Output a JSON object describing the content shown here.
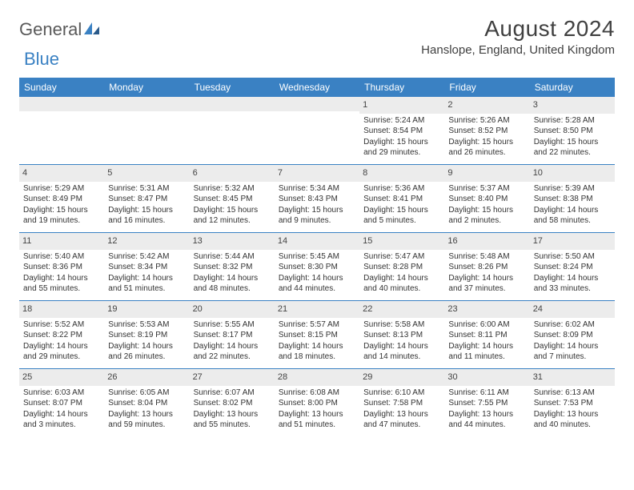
{
  "logo": {
    "text_general": "General",
    "text_blue": "Blue"
  },
  "title": "August 2024",
  "location": "Hanslope, England, United Kingdom",
  "colors": {
    "header_bar": "#3a81c3",
    "daynum_bg": "#ececec",
    "text": "#333333",
    "title_text": "#404040"
  },
  "layout": {
    "columns": 7,
    "rows": 5,
    "first_weekday_index": 4
  },
  "days_of_week": [
    "Sunday",
    "Monday",
    "Tuesday",
    "Wednesday",
    "Thursday",
    "Friday",
    "Saturday"
  ],
  "weeks": [
    [
      {
        "day": "",
        "sunrise": "",
        "sunset": "",
        "daylight": ""
      },
      {
        "day": "",
        "sunrise": "",
        "sunset": "",
        "daylight": ""
      },
      {
        "day": "",
        "sunrise": "",
        "sunset": "",
        "daylight": ""
      },
      {
        "day": "",
        "sunrise": "",
        "sunset": "",
        "daylight": ""
      },
      {
        "day": "1",
        "sunrise": "Sunrise: 5:24 AM",
        "sunset": "Sunset: 8:54 PM",
        "daylight": "Daylight: 15 hours and 29 minutes."
      },
      {
        "day": "2",
        "sunrise": "Sunrise: 5:26 AM",
        "sunset": "Sunset: 8:52 PM",
        "daylight": "Daylight: 15 hours and 26 minutes."
      },
      {
        "day": "3",
        "sunrise": "Sunrise: 5:28 AM",
        "sunset": "Sunset: 8:50 PM",
        "daylight": "Daylight: 15 hours and 22 minutes."
      }
    ],
    [
      {
        "day": "4",
        "sunrise": "Sunrise: 5:29 AM",
        "sunset": "Sunset: 8:49 PM",
        "daylight": "Daylight: 15 hours and 19 minutes."
      },
      {
        "day": "5",
        "sunrise": "Sunrise: 5:31 AM",
        "sunset": "Sunset: 8:47 PM",
        "daylight": "Daylight: 15 hours and 16 minutes."
      },
      {
        "day": "6",
        "sunrise": "Sunrise: 5:32 AM",
        "sunset": "Sunset: 8:45 PM",
        "daylight": "Daylight: 15 hours and 12 minutes."
      },
      {
        "day": "7",
        "sunrise": "Sunrise: 5:34 AM",
        "sunset": "Sunset: 8:43 PM",
        "daylight": "Daylight: 15 hours and 9 minutes."
      },
      {
        "day": "8",
        "sunrise": "Sunrise: 5:36 AM",
        "sunset": "Sunset: 8:41 PM",
        "daylight": "Daylight: 15 hours and 5 minutes."
      },
      {
        "day": "9",
        "sunrise": "Sunrise: 5:37 AM",
        "sunset": "Sunset: 8:40 PM",
        "daylight": "Daylight: 15 hours and 2 minutes."
      },
      {
        "day": "10",
        "sunrise": "Sunrise: 5:39 AM",
        "sunset": "Sunset: 8:38 PM",
        "daylight": "Daylight: 14 hours and 58 minutes."
      }
    ],
    [
      {
        "day": "11",
        "sunrise": "Sunrise: 5:40 AM",
        "sunset": "Sunset: 8:36 PM",
        "daylight": "Daylight: 14 hours and 55 minutes."
      },
      {
        "day": "12",
        "sunrise": "Sunrise: 5:42 AM",
        "sunset": "Sunset: 8:34 PM",
        "daylight": "Daylight: 14 hours and 51 minutes."
      },
      {
        "day": "13",
        "sunrise": "Sunrise: 5:44 AM",
        "sunset": "Sunset: 8:32 PM",
        "daylight": "Daylight: 14 hours and 48 minutes."
      },
      {
        "day": "14",
        "sunrise": "Sunrise: 5:45 AM",
        "sunset": "Sunset: 8:30 PM",
        "daylight": "Daylight: 14 hours and 44 minutes."
      },
      {
        "day": "15",
        "sunrise": "Sunrise: 5:47 AM",
        "sunset": "Sunset: 8:28 PM",
        "daylight": "Daylight: 14 hours and 40 minutes."
      },
      {
        "day": "16",
        "sunrise": "Sunrise: 5:48 AM",
        "sunset": "Sunset: 8:26 PM",
        "daylight": "Daylight: 14 hours and 37 minutes."
      },
      {
        "day": "17",
        "sunrise": "Sunrise: 5:50 AM",
        "sunset": "Sunset: 8:24 PM",
        "daylight": "Daylight: 14 hours and 33 minutes."
      }
    ],
    [
      {
        "day": "18",
        "sunrise": "Sunrise: 5:52 AM",
        "sunset": "Sunset: 8:22 PM",
        "daylight": "Daylight: 14 hours and 29 minutes."
      },
      {
        "day": "19",
        "sunrise": "Sunrise: 5:53 AM",
        "sunset": "Sunset: 8:19 PM",
        "daylight": "Daylight: 14 hours and 26 minutes."
      },
      {
        "day": "20",
        "sunrise": "Sunrise: 5:55 AM",
        "sunset": "Sunset: 8:17 PM",
        "daylight": "Daylight: 14 hours and 22 minutes."
      },
      {
        "day": "21",
        "sunrise": "Sunrise: 5:57 AM",
        "sunset": "Sunset: 8:15 PM",
        "daylight": "Daylight: 14 hours and 18 minutes."
      },
      {
        "day": "22",
        "sunrise": "Sunrise: 5:58 AM",
        "sunset": "Sunset: 8:13 PM",
        "daylight": "Daylight: 14 hours and 14 minutes."
      },
      {
        "day": "23",
        "sunrise": "Sunrise: 6:00 AM",
        "sunset": "Sunset: 8:11 PM",
        "daylight": "Daylight: 14 hours and 11 minutes."
      },
      {
        "day": "24",
        "sunrise": "Sunrise: 6:02 AM",
        "sunset": "Sunset: 8:09 PM",
        "daylight": "Daylight: 14 hours and 7 minutes."
      }
    ],
    [
      {
        "day": "25",
        "sunrise": "Sunrise: 6:03 AM",
        "sunset": "Sunset: 8:07 PM",
        "daylight": "Daylight: 14 hours and 3 minutes."
      },
      {
        "day": "26",
        "sunrise": "Sunrise: 6:05 AM",
        "sunset": "Sunset: 8:04 PM",
        "daylight": "Daylight: 13 hours and 59 minutes."
      },
      {
        "day": "27",
        "sunrise": "Sunrise: 6:07 AM",
        "sunset": "Sunset: 8:02 PM",
        "daylight": "Daylight: 13 hours and 55 minutes."
      },
      {
        "day": "28",
        "sunrise": "Sunrise: 6:08 AM",
        "sunset": "Sunset: 8:00 PM",
        "daylight": "Daylight: 13 hours and 51 minutes."
      },
      {
        "day": "29",
        "sunrise": "Sunrise: 6:10 AM",
        "sunset": "Sunset: 7:58 PM",
        "daylight": "Daylight: 13 hours and 47 minutes."
      },
      {
        "day": "30",
        "sunrise": "Sunrise: 6:11 AM",
        "sunset": "Sunset: 7:55 PM",
        "daylight": "Daylight: 13 hours and 44 minutes."
      },
      {
        "day": "31",
        "sunrise": "Sunrise: 6:13 AM",
        "sunset": "Sunset: 7:53 PM",
        "daylight": "Daylight: 13 hours and 40 minutes."
      }
    ]
  ]
}
